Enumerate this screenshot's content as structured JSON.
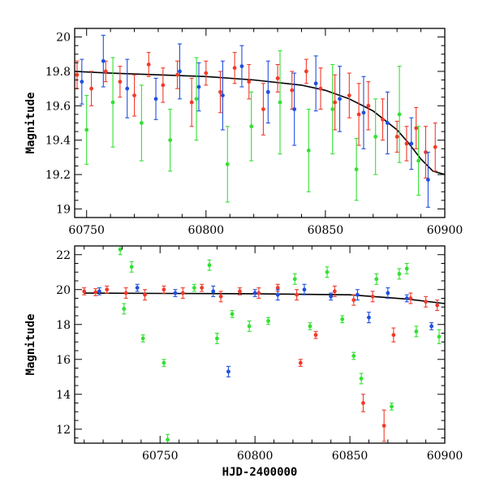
{
  "chart_data": [
    {
      "type": "scatter",
      "title": "",
      "xlabel": "",
      "ylabel": "Magnitude",
      "xlim": [
        60745,
        60900
      ],
      "ylim": [
        20.05,
        18.95
      ],
      "y_inverted": true,
      "grid": false,
      "legend": "none",
      "x_tick_labels": [
        "60750",
        "60800",
        "60850",
        "60900"
      ],
      "y_tick_labels": [
        "19",
        "19.2",
        "19.4",
        "19.6",
        "19.8",
        "20"
      ],
      "colors": {
        "red": "#f23a2a",
        "blue": "#1f4fe0",
        "green": "#33e033",
        "model": "#000000"
      },
      "model_curve": {
        "x": [
          60745,
          60760,
          60780,
          60800,
          60820,
          60840,
          60850,
          60860,
          60870,
          60880,
          60885,
          60890,
          60895,
          60900
        ],
        "y": [
          19.8,
          19.79,
          19.78,
          19.77,
          19.75,
          19.72,
          19.69,
          19.64,
          19.57,
          19.46,
          19.38,
          19.29,
          19.22,
          19.2
        ]
      },
      "series": [
        {
          "color": "red",
          "x": [
            60746,
            60752,
            60758,
            60764,
            60770,
            60776,
            60782,
            60788,
            60794,
            60800,
            60806,
            60812,
            60818,
            60824,
            60830,
            60836,
            60842,
            60848,
            60854,
            60860,
            60864,
            60868,
            60874,
            60880,
            60884,
            60888,
            60892,
            60896
          ],
          "y": [
            19.78,
            19.7,
            19.8,
            19.74,
            19.66,
            19.84,
            19.72,
            19.78,
            19.62,
            19.79,
            19.68,
            19.82,
            19.74,
            19.58,
            19.76,
            19.69,
            19.8,
            19.7,
            19.62,
            19.66,
            19.55,
            19.6,
            19.52,
            19.42,
            19.38,
            19.47,
            19.33,
            19.36
          ],
          "err": [
            0.08,
            0.1,
            0.06,
            0.09,
            0.12,
            0.07,
            0.1,
            0.08,
            0.14,
            0.07,
            0.12,
            0.09,
            0.1,
            0.15,
            0.08,
            0.11,
            0.07,
            0.12,
            0.16,
            0.13,
            0.18,
            0.14,
            0.12,
            0.09,
            0.1,
            0.12,
            0.15,
            0.14
          ]
        },
        {
          "color": "blue",
          "x": [
            60748,
            60757,
            60767,
            60779,
            60789,
            60797,
            60807,
            60815,
            60826,
            60837,
            60846,
            60856,
            60866,
            60876,
            60886,
            60893
          ],
          "y": [
            19.74,
            19.86,
            19.7,
            19.64,
            19.8,
            19.71,
            19.66,
            19.83,
            19.68,
            19.58,
            19.73,
            19.64,
            19.56,
            19.5,
            19.38,
            19.17
          ],
          "err": [
            0.13,
            0.15,
            0.17,
            0.12,
            0.16,
            0.14,
            0.2,
            0.12,
            0.18,
            0.21,
            0.16,
            0.19,
            0.21,
            0.18,
            0.15,
            0.16
          ]
        },
        {
          "color": "green",
          "x": [
            60750,
            60761,
            60773,
            60785,
            60796,
            60809,
            60819,
            60831,
            60843,
            60853,
            60863,
            60871,
            60881,
            60889
          ],
          "y": [
            19.46,
            19.62,
            19.5,
            19.4,
            19.64,
            19.26,
            19.48,
            19.62,
            19.34,
            19.58,
            19.23,
            19.42,
            19.55,
            19.28
          ],
          "err": [
            0.2,
            0.26,
            0.22,
            0.18,
            0.24,
            0.22,
            0.2,
            0.3,
            0.24,
            0.26,
            0.18,
            0.22,
            0.28,
            0.2
          ]
        }
      ]
    },
    {
      "type": "scatter",
      "title": "",
      "xlabel": "HJD-2400000",
      "ylabel": "Magnitude",
      "xlim": [
        60705,
        60900
      ],
      "ylim": [
        22.5,
        11.2
      ],
      "y_inverted": true,
      "grid": false,
      "legend": "none",
      "x_tick_labels": [
        "60750",
        "60800",
        "60850",
        "60900"
      ],
      "y_tick_labels": [
        "12",
        "14",
        "16",
        "18",
        "20",
        "22"
      ],
      "colors": {
        "red": "#f23a2a",
        "blue": "#1f4fe0",
        "green": "#33e033",
        "model": "#000000"
      },
      "model_curve": {
        "x": [
          60710,
          60750,
          60800,
          60850,
          60880,
          60900
        ],
        "y": [
          19.8,
          19.78,
          19.76,
          19.7,
          19.46,
          19.2
        ]
      },
      "series": [
        {
          "color": "red",
          "x": [
            60710,
            60716,
            60722,
            60732,
            60742,
            60752,
            60762,
            60772,
            60782,
            60792,
            60802,
            60812,
            60822,
            60824,
            60832,
            60842,
            60852,
            60857,
            60862,
            60868,
            60873,
            60882,
            60890,
            60896
          ],
          "y": [
            19.9,
            19.85,
            20.0,
            19.8,
            19.7,
            20.0,
            19.8,
            20.1,
            19.6,
            19.9,
            19.8,
            20.1,
            19.7,
            15.8,
            17.4,
            19.9,
            19.4,
            13.5,
            19.6,
            12.2,
            17.4,
            19.5,
            19.3,
            19.1
          ],
          "err": [
            0.2,
            0.2,
            0.2,
            0.3,
            0.3,
            0.2,
            0.3,
            0.2,
            0.3,
            0.2,
            0.3,
            0.2,
            0.3,
            0.2,
            0.2,
            0.3,
            0.3,
            0.5,
            0.3,
            0.9,
            0.4,
            0.3,
            0.3,
            0.3
          ]
        },
        {
          "color": "blue",
          "x": [
            60718,
            60738,
            60758,
            60778,
            60786,
            60800,
            60812,
            60826,
            60840,
            60854,
            60860,
            60870,
            60880,
            60893
          ],
          "y": [
            19.9,
            20.1,
            19.8,
            19.9,
            15.3,
            19.8,
            19.7,
            20.0,
            19.6,
            19.7,
            18.4,
            19.8,
            19.5,
            17.9
          ],
          "err": [
            0.2,
            0.2,
            0.2,
            0.3,
            0.3,
            0.2,
            0.3,
            0.3,
            0.2,
            0.3,
            0.3,
            0.3,
            0.2,
            0.2
          ]
        },
        {
          "color": "green",
          "x": [
            60729,
            60731,
            60735,
            60741,
            60752,
            60754,
            60768,
            60776,
            60780,
            60788,
            60797,
            60807,
            60821,
            60829,
            60838,
            60846,
            60852,
            60856,
            60864,
            60872,
            60876,
            60880,
            60885,
            60897
          ],
          "y": [
            22.3,
            18.9,
            21.3,
            17.2,
            15.8,
            11.4,
            20.1,
            21.4,
            17.2,
            18.6,
            17.9,
            18.2,
            20.6,
            17.9,
            21.0,
            18.3,
            16.2,
            14.9,
            20.6,
            13.3,
            20.9,
            21.2,
            17.6,
            17.3
          ],
          "err": [
            0.3,
            0.3,
            0.3,
            0.2,
            0.2,
            0.3,
            0.2,
            0.3,
            0.3,
            0.2,
            0.3,
            0.2,
            0.3,
            0.2,
            0.3,
            0.2,
            0.2,
            0.3,
            0.3,
            0.2,
            0.3,
            0.3,
            0.3,
            0.4
          ]
        }
      ]
    }
  ]
}
